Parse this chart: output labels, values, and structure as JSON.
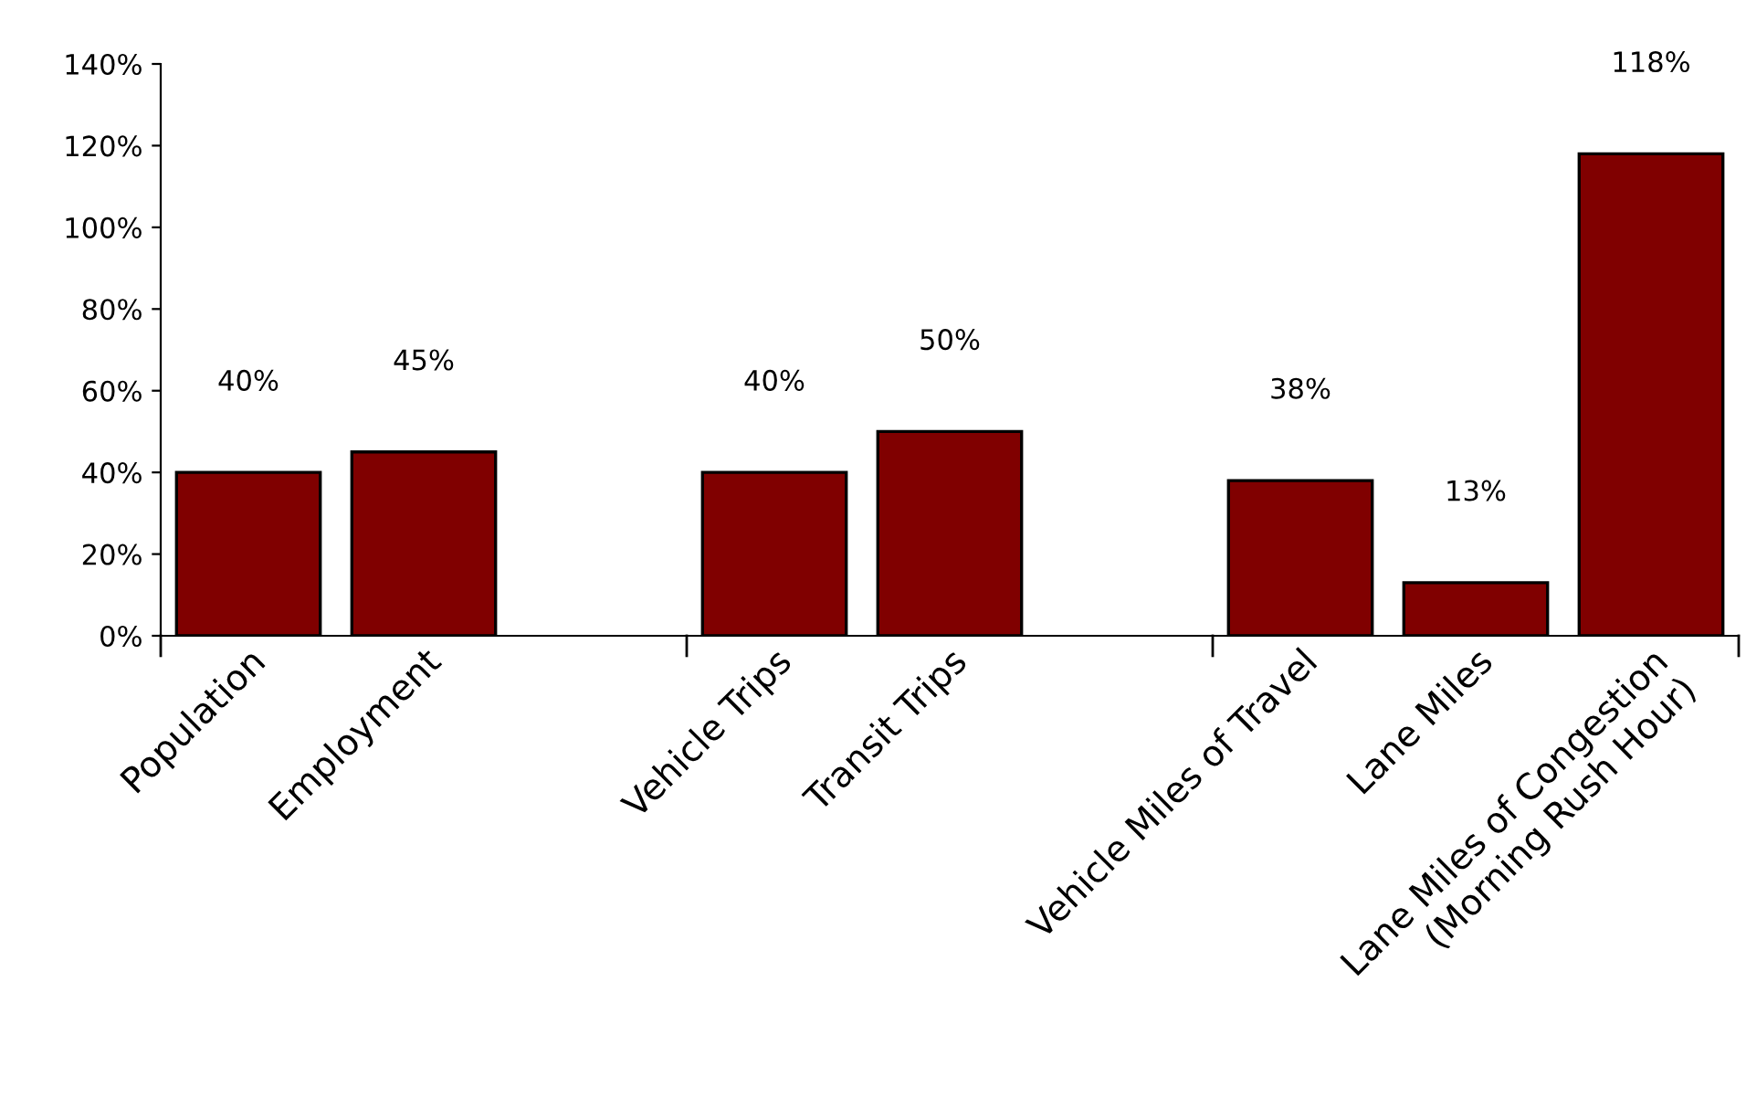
{
  "chart_data": {
    "type": "bar",
    "categories": [
      "Population",
      "Employment",
      null,
      "Vehicle Trips",
      "Transit Trips",
      null,
      "Vehicle Miles of Travel",
      "Lane Miles",
      "Lane Miles of Congestion\n(Morning Rush Hour)"
    ],
    "values": [
      40,
      45,
      null,
      40,
      50,
      null,
      38,
      13,
      118
    ],
    "color": "#800000",
    "ylim": [
      0,
      140
    ],
    "yticks": [
      {
        "value": 0,
        "label": "0%"
      },
      {
        "value": 20,
        "label": "20%"
      },
      {
        "value": 40,
        "label": "40%"
      },
      {
        "value": 60,
        "label": "60%"
      },
      {
        "value": 80,
        "label": "80%"
      },
      {
        "value": 100,
        "label": "100%"
      },
      {
        "value": 120,
        "label": "120%"
      },
      {
        "value": 140,
        "label": "140%"
      }
    ],
    "value_labels": [
      "40%",
      "45%",
      null,
      "40%",
      "50%",
      null,
      "38%",
      "13%",
      "118%"
    ],
    "grid": false,
    "legend": false
  }
}
